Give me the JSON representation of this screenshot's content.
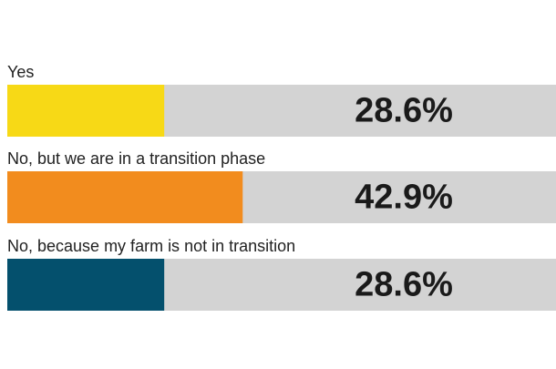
{
  "chart_data": {
    "type": "bar",
    "categories": [
      "Yes",
      "No, but we are in a transition phase",
      "No, because my farm is not in transition"
    ],
    "series": [
      {
        "name": null,
        "values": [
          28.6,
          42.9,
          28.6
        ],
        "value_labels": [
          "28.6%",
          "42.9%",
          "28.6%"
        ],
        "colors": [
          "#f7d916",
          "#f28c1e",
          "#04506d"
        ]
      }
    ],
    "xlim": [
      0,
      100
    ],
    "track_color": "#d3d3d3"
  }
}
